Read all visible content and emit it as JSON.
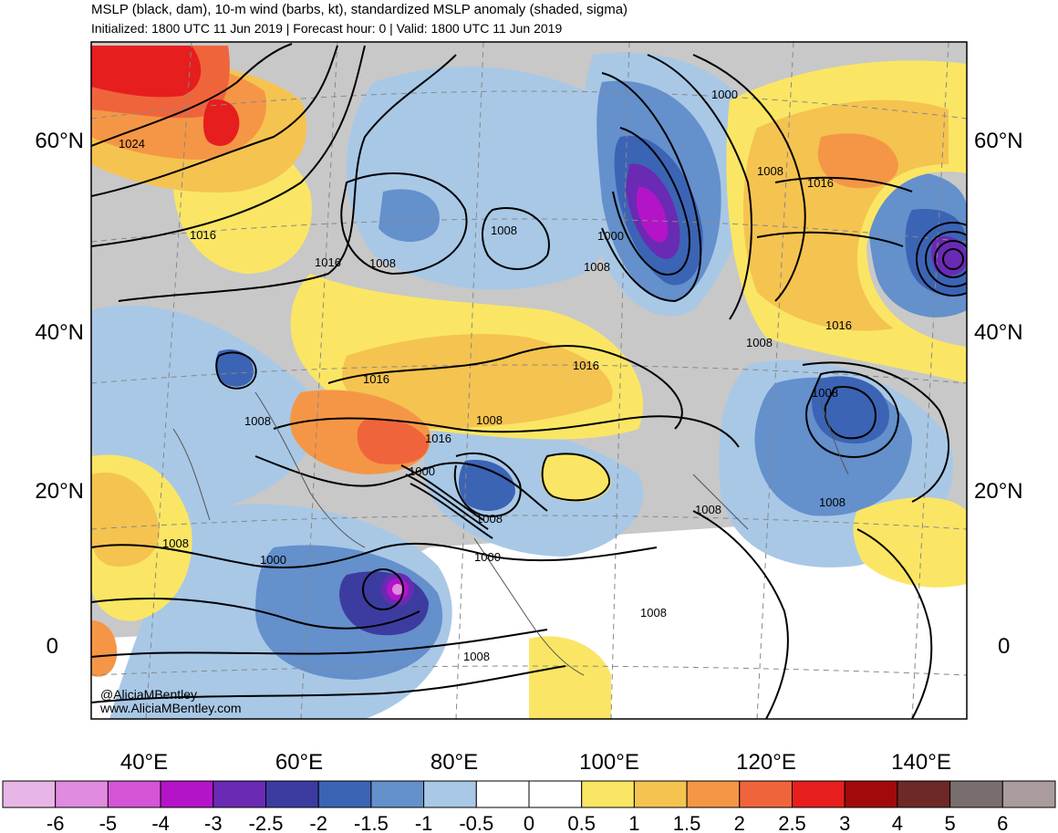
{
  "header": {
    "title": "MSLP (black, dam), 10-m wind (barbs, kt), standardized MSLP anomaly (shaded, sigma)",
    "subtitle": "Initialized: 1800 UTC 11 Jun 2019 | Forecast hour: 0 | Valid: 1800 UTC 11 Jun 2019"
  },
  "map": {
    "lat_labels": [
      "60°N",
      "40°N",
      "20°N",
      "0"
    ],
    "lon_labels": [
      "40°E",
      "60°E",
      "80°E",
      "100°E",
      "120°E",
      "140°E"
    ],
    "isobar_labels": [
      "1024",
      "1016",
      "1016",
      "1008",
      "1008",
      "1000",
      "1000",
      "1008",
      "1008",
      "1016",
      "1016",
      "1016",
      "1016",
      "1008",
      "1008",
      "1008",
      "1016",
      "1000",
      "1008",
      "1000",
      "1008",
      "1008",
      "1008",
      "1008",
      "1000",
      "1008",
      "1008"
    ],
    "credits": [
      "@AliciaMBentley",
      "www.AliciaMBentley.com"
    ],
    "colors": {
      "land_gray": "#c8c8c8",
      "ocean_white": "#ffffff",
      "isobar": "#000000",
      "grid": "#888888"
    }
  },
  "colorbar": {
    "labels": [
      "-6",
      "-5",
      "-4",
      "-3",
      "-2.5",
      "-2",
      "-1.5",
      "-1",
      "-0.5",
      "0",
      "0.5",
      "1",
      "1.5",
      "2",
      "2.5",
      "3",
      "4",
      "5",
      "6"
    ],
    "colors": [
      "#e8b6e6",
      "#e08ae0",
      "#d654d6",
      "#b414c8",
      "#6a2ab4",
      "#3c3ca0",
      "#3c64b4",
      "#6490cc",
      "#a8c8e6",
      "#ffffff",
      "#ffffff",
      "#fae664",
      "#f5c350",
      "#f59646",
      "#f0643c",
      "#e61e1e",
      "#a00a0a",
      "#6e2828",
      "#786e6e",
      "#aa9c9c"
    ]
  }
}
